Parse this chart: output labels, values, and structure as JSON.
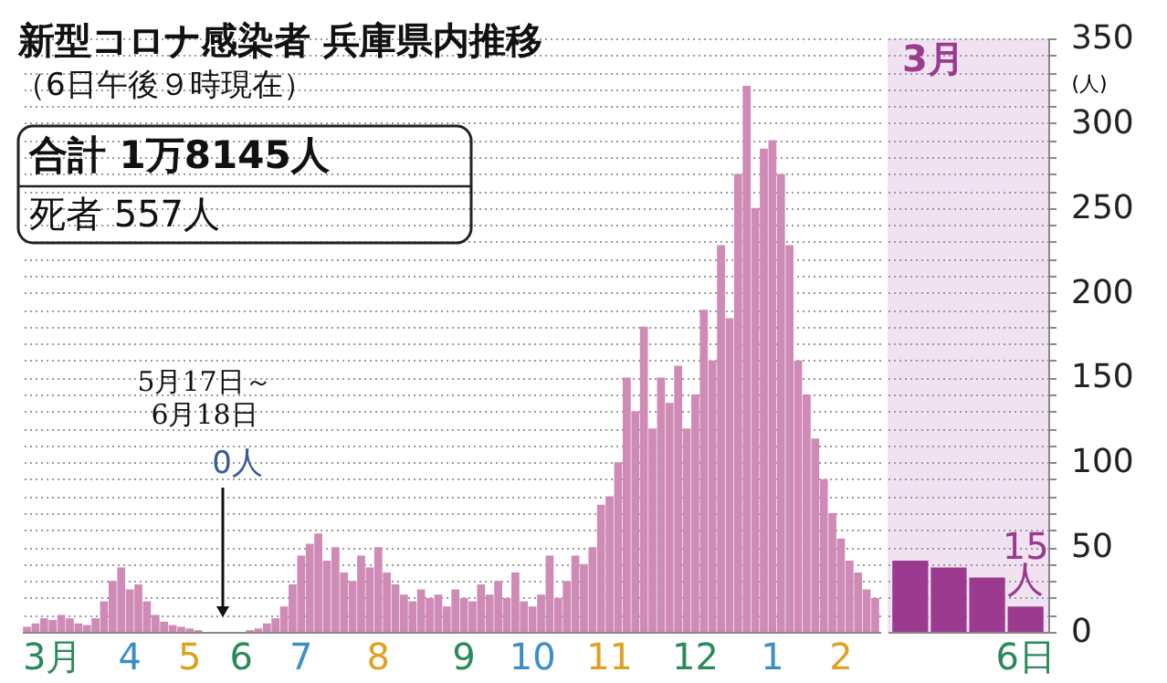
{
  "chart_data": [
    {
      "type": "bar",
      "title": "新型コロナ感染者 兵庫県内推移",
      "subtitle": "（6日午後９時現在）",
      "categories": [
        null,
        null,
        null,
        "3月",
        null,
        null,
        null,
        null,
        null,
        null,
        null,
        null,
        "4",
        null,
        null,
        null,
        null,
        null,
        null,
        "5",
        null,
        null,
        null,
        null,
        null,
        "6",
        null,
        null,
        null,
        null,
        null,
        null,
        "7",
        null,
        null,
        null,
        null,
        null,
        null,
        null,
        null,
        "8",
        null,
        null,
        null,
        null,
        null,
        null,
        null,
        null,
        null,
        "9",
        null,
        null,
        null,
        null,
        null,
        null,
        null,
        "10",
        null,
        null,
        null,
        null,
        null,
        null,
        null,
        null,
        "11",
        null,
        null,
        null,
        null,
        null,
        null,
        null,
        null,
        null,
        "12",
        null,
        null,
        null,
        null,
        null,
        null,
        null,
        null,
        "1",
        null,
        null,
        null,
        null,
        null,
        null,
        null,
        "2",
        null,
        null,
        null,
        null
      ],
      "series": [
        {
          "color": "#cf8bb6",
          "values": [
            3,
            5,
            8,
            7,
            10,
            8,
            5,
            4,
            8,
            18,
            30,
            38,
            25,
            28,
            18,
            10,
            6,
            4,
            3,
            2,
            1,
            0,
            0,
            0,
            0,
            0,
            1,
            2,
            5,
            8,
            15,
            28,
            45,
            52,
            58,
            42,
            50,
            35,
            30,
            45,
            38,
            50,
            35,
            28,
            22,
            18,
            25,
            20,
            22,
            15,
            25,
            20,
            18,
            28,
            22,
            30,
            20,
            35,
            18,
            15,
            22,
            45,
            20,
            30,
            45,
            40,
            50,
            75,
            80,
            100,
            150,
            130,
            180,
            120,
            150,
            135,
            157,
            120,
            140,
            190,
            160,
            228,
            185,
            270,
            322,
            250,
            285,
            290,
            270,
            228,
            160,
            140,
            114,
            90,
            70,
            55,
            42,
            35,
            25,
            20
          ]
        }
      ],
      "ylim": [
        0,
        350
      ],
      "yticks": [
        0,
        {
          "value": 10,
          "label": null
        },
        {
          "value": 20,
          "label": null
        },
        {
          "value": 30,
          "label": null
        },
        {
          "value": 40,
          "label": null
        },
        50,
        {
          "value": 60,
          "label": null
        },
        {
          "value": 70,
          "label": null
        },
        {
          "value": 80,
          "label": null
        },
        {
          "value": 90,
          "label": null
        },
        100,
        {
          "value": 110,
          "label": null
        },
        {
          "value": 120,
          "label": null
        },
        {
          "value": 130,
          "label": null
        },
        {
          "value": 140,
          "label": null
        },
        150,
        {
          "value": 160,
          "label": null
        },
        {
          "value": 170,
          "label": null
        },
        {
          "value": 180,
          "label": null
        },
        {
          "value": 190,
          "label": null
        },
        200,
        {
          "value": 210,
          "label": null
        },
        {
          "value": 220,
          "label": null
        },
        {
          "value": 230,
          "label": null
        },
        {
          "value": 240,
          "label": null
        },
        250,
        {
          "value": 260,
          "label": null
        },
        {
          "value": 270,
          "label": null
        },
        {
          "value": 280,
          "label": null
        },
        {
          "value": 290,
          "label": null
        },
        300,
        {
          "value": 310,
          "label": null
        },
        {
          "value": 320,
          "label": null
        },
        {
          "value": 330,
          "label": null
        },
        {
          "value": 340,
          "label": null
        },
        350
      ],
      "grid": "y",
      "tick_labels": "x",
      "annotations": [
        "合計 1万8145人",
        "死者 557人",
        "5月17日～\n6月18日",
        "0人"
      ]
    },
    {
      "type": "bar",
      "title": "3月",
      "ylabel": "(人)",
      "categories": [
        null,
        null,
        null,
        "6日"
      ],
      "series": [
        {
          "color": "#9b3a8e",
          "values": [
            42,
            38,
            32,
            15
          ],
          "value_labels": [
            null,
            null,
            null,
            "15\n人"
          ]
        }
      ],
      "ylim": [
        0,
        350
      ],
      "yticks": [
        0,
        {
          "value": 10,
          "label": null
        },
        {
          "value": 20,
          "label": null
        },
        {
          "value": 30,
          "label": null
        },
        {
          "value": 40,
          "label": null
        },
        50,
        {
          "value": 60,
          "label": null
        },
        {
          "value": 70,
          "label": null
        },
        {
          "value": 80,
          "label": null
        },
        {
          "value": 90,
          "label": null
        },
        100,
        {
          "value": 110,
          "label": null
        },
        {
          "value": 120,
          "label": null
        },
        {
          "value": 130,
          "label": null
        },
        {
          "value": 140,
          "label": null
        },
        150,
        {
          "value": 160,
          "label": null
        },
        {
          "value": 170,
          "label": null
        },
        {
          "value": 180,
          "label": null
        },
        {
          "value": 190,
          "label": null
        },
        200,
        {
          "value": 210,
          "label": null
        },
        {
          "value": 220,
          "label": null
        },
        {
          "value": 230,
          "label": null
        },
        {
          "value": 240,
          "label": null
        },
        250,
        {
          "value": 260,
          "label": null
        },
        {
          "value": 270,
          "label": null
        },
        {
          "value": 280,
          "label": null
        },
        {
          "value": 290,
          "label": null
        },
        300,
        {
          "value": 310,
          "label": null
        },
        {
          "value": 320,
          "label": null
        },
        {
          "value": 330,
          "label": null
        },
        {
          "value": 340,
          "label": null
        },
        350
      ],
      "grid": "y"
    }
  ]
}
